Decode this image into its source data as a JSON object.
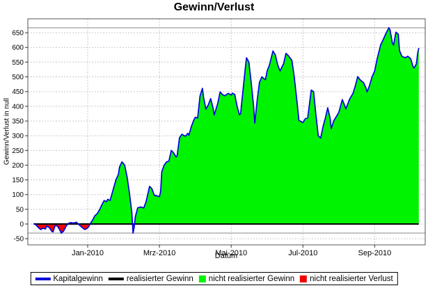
{
  "title": "Gewinn/Verlust",
  "colors": {
    "line_blue": "#0000dd",
    "realized_black": "#000000",
    "gain_green": "#00f300",
    "loss_red": "#f20000",
    "marker_gray": "#a8a8a8",
    "grid_gray": "#c8c8c8",
    "border_gray": "#555555"
  },
  "chart_data": {
    "type": "area",
    "title": "Gewinn/Verlust",
    "xlabel": "Datum",
    "ylabel": "Gewinn/Verlust in null",
    "ylim": [
      -71,
      697
    ],
    "grid": true,
    "legend_position": "bottom",
    "y_ticks": [
      650,
      600,
      550,
      500,
      450,
      400,
      350,
      300,
      250,
      200,
      150,
      100,
      50,
      0,
      -50
    ],
    "x_ticks": [
      {
        "label": "Jan-2010",
        "month": 0
      },
      {
        "label": "Mrz-2010",
        "month": 2
      },
      {
        "label": "Mai-2010",
        "month": 4
      },
      {
        "label": "Jul-2010",
        "month": 6
      },
      {
        "label": "Sep-2010",
        "month": 8
      }
    ],
    "marker_lines": "solid gray lines at series maximum and minimum",
    "series": [
      {
        "name": "Kapitalgewinn",
        "type": "line",
        "color": "#0000dd",
        "points": [
          [
            "2009-11-16",
            2
          ],
          [
            "2009-11-18",
            -3
          ],
          [
            "2009-11-20",
            -12
          ],
          [
            "2009-11-22",
            -19
          ],
          [
            "2009-11-24",
            -14
          ],
          [
            "2009-11-26",
            -17
          ],
          [
            "2009-11-27",
            -7
          ],
          [
            "2009-11-29",
            -11
          ],
          [
            "2009-12-01",
            -25
          ],
          [
            "2009-12-02",
            -27
          ],
          [
            "2009-12-04",
            -4
          ],
          [
            "2009-12-06",
            -8
          ],
          [
            "2009-12-08",
            -22
          ],
          [
            "2009-12-09",
            -31
          ],
          [
            "2009-12-11",
            -24
          ],
          [
            "2009-12-13",
            -8
          ],
          [
            "2009-12-15",
            2
          ],
          [
            "2009-12-17",
            5
          ],
          [
            "2009-12-19",
            3
          ],
          [
            "2009-12-22",
            6
          ],
          [
            "2009-12-23",
            1
          ],
          [
            "2009-12-25",
            -6
          ],
          [
            "2009-12-27",
            -13
          ],
          [
            "2009-12-29",
            -19
          ],
          [
            "2009-12-31",
            -15
          ],
          [
            "2010-01-02",
            -8
          ],
          [
            "2010-01-03",
            0
          ],
          [
            "2010-01-05",
            12
          ],
          [
            "2010-01-07",
            28
          ],
          [
            "2010-01-09",
            35
          ],
          [
            "2010-01-11",
            48
          ],
          [
            "2010-01-13",
            65
          ],
          [
            "2010-01-15",
            80
          ],
          [
            "2010-01-17",
            76
          ],
          [
            "2010-01-18",
            84
          ],
          [
            "2010-01-20",
            80
          ],
          [
            "2010-01-23",
            123
          ],
          [
            "2010-01-25",
            151
          ],
          [
            "2010-01-27",
            168
          ],
          [
            "2010-01-28",
            194
          ],
          [
            "2010-01-30",
            211
          ],
          [
            "2010-02-01",
            205
          ],
          [
            "2010-02-02",
            199
          ],
          [
            "2010-02-04",
            160
          ],
          [
            "2010-02-06",
            105
          ],
          [
            "2010-02-08",
            40
          ],
          [
            "2010-02-09",
            -31
          ],
          [
            "2010-02-10",
            -12
          ],
          [
            "2010-02-11",
            25
          ],
          [
            "2010-02-13",
            55
          ],
          [
            "2010-02-16",
            58
          ],
          [
            "2010-02-18",
            54
          ],
          [
            "2010-02-20",
            75
          ],
          [
            "2010-02-22",
            110
          ],
          [
            "2010-02-23",
            128
          ],
          [
            "2010-02-25",
            120
          ],
          [
            "2010-02-27",
            98
          ],
          [
            "2010-03-01",
            93
          ],
          [
            "2010-03-02",
            110
          ],
          [
            "2010-03-03",
            178
          ],
          [
            "2010-03-05",
            200
          ],
          [
            "2010-03-07",
            211
          ],
          [
            "2010-03-09",
            214
          ],
          [
            "2010-03-11",
            250
          ],
          [
            "2010-03-13",
            242
          ],
          [
            "2010-03-15",
            228
          ],
          [
            "2010-03-16",
            232
          ],
          [
            "2010-03-18",
            293
          ],
          [
            "2010-03-20",
            305
          ],
          [
            "2010-03-23",
            298
          ],
          [
            "2010-03-25",
            308
          ],
          [
            "2010-03-26",
            302
          ],
          [
            "2010-03-28",
            331
          ],
          [
            "2010-03-30",
            352
          ],
          [
            "2010-04-01",
            363
          ],
          [
            "2010-04-03",
            360
          ],
          [
            "2010-04-05",
            435
          ],
          [
            "2010-04-07",
            461
          ],
          [
            "2010-04-08",
            430
          ],
          [
            "2010-04-10",
            390
          ],
          [
            "2010-04-12",
            405
          ],
          [
            "2010-04-14",
            426
          ],
          [
            "2010-04-16",
            395
          ],
          [
            "2010-04-17",
            371
          ],
          [
            "2010-04-20",
            410
          ],
          [
            "2010-04-22",
            449
          ],
          [
            "2010-04-24",
            440
          ],
          [
            "2010-04-26",
            436
          ],
          [
            "2010-04-29",
            444
          ],
          [
            "2010-05-01",
            438
          ],
          [
            "2010-05-02",
            445
          ],
          [
            "2010-05-04",
            440
          ],
          [
            "2010-05-06",
            400
          ],
          [
            "2010-05-08",
            371
          ],
          [
            "2010-05-09",
            376
          ],
          [
            "2010-05-11",
            455
          ],
          [
            "2010-05-13",
            530
          ],
          [
            "2010-05-14",
            565
          ],
          [
            "2010-05-16",
            550
          ],
          [
            "2010-05-18",
            480
          ],
          [
            "2010-05-20",
            400
          ],
          [
            "2010-05-21",
            343
          ],
          [
            "2010-05-23",
            420
          ],
          [
            "2010-05-25",
            482
          ],
          [
            "2010-05-27",
            500
          ],
          [
            "2010-05-30",
            490
          ],
          [
            "2010-06-01",
            520
          ],
          [
            "2010-06-03",
            540
          ],
          [
            "2010-06-06",
            588
          ],
          [
            "2010-06-08",
            575
          ],
          [
            "2010-06-10",
            541
          ],
          [
            "2010-06-12",
            520
          ],
          [
            "2010-06-15",
            545
          ],
          [
            "2010-06-17",
            580
          ],
          [
            "2010-06-19",
            572
          ],
          [
            "2010-06-22",
            556
          ],
          [
            "2010-06-24",
            500
          ],
          [
            "2010-06-26",
            430
          ],
          [
            "2010-06-28",
            352
          ],
          [
            "2010-07-01",
            345
          ],
          [
            "2010-07-03",
            358
          ],
          [
            "2010-07-05",
            360
          ],
          [
            "2010-07-08",
            455
          ],
          [
            "2010-07-10",
            450
          ],
          [
            "2010-07-12",
            370
          ],
          [
            "2010-07-14",
            300
          ],
          [
            "2010-07-16",
            292
          ],
          [
            "2010-07-18",
            330
          ],
          [
            "2010-07-20",
            360
          ],
          [
            "2010-07-22",
            395
          ],
          [
            "2010-07-24",
            360
          ],
          [
            "2010-07-25",
            324
          ],
          [
            "2010-07-27",
            350
          ],
          [
            "2010-08-01",
            379
          ],
          [
            "2010-08-04",
            423
          ],
          [
            "2010-08-07",
            391
          ],
          [
            "2010-08-10",
            423
          ],
          [
            "2010-08-13",
            444
          ],
          [
            "2010-08-15",
            470
          ],
          [
            "2010-08-17",
            501
          ],
          [
            "2010-08-19",
            490
          ],
          [
            "2010-08-22",
            480
          ],
          [
            "2010-08-24",
            462
          ],
          [
            "2010-08-25",
            449
          ],
          [
            "2010-08-27",
            470
          ],
          [
            "2010-08-29",
            498
          ],
          [
            "2010-09-01",
            520
          ],
          [
            "2010-09-03",
            560
          ],
          [
            "2010-09-06",
            608
          ],
          [
            "2010-09-08",
            625
          ],
          [
            "2010-09-10",
            643
          ],
          [
            "2010-09-13",
            667
          ],
          [
            "2010-09-14",
            660
          ],
          [
            "2010-09-16",
            615
          ],
          [
            "2010-09-17",
            608
          ],
          [
            "2010-09-19",
            652
          ],
          [
            "2010-09-21",
            645
          ],
          [
            "2010-09-22",
            590
          ],
          [
            "2010-09-24",
            570
          ],
          [
            "2010-09-27",
            565
          ],
          [
            "2010-09-29",
            570
          ],
          [
            "2010-10-01",
            562
          ],
          [
            "2010-10-03",
            536
          ],
          [
            "2010-10-04",
            530
          ],
          [
            "2010-10-06",
            545
          ],
          [
            "2010-10-07",
            580
          ],
          [
            "2010-10-08",
            598
          ]
        ]
      },
      {
        "name": "realisierter Gewinn",
        "type": "line",
        "color": "#000000",
        "value": 0
      },
      {
        "name": "nicht realisierter Gewinn",
        "type": "area",
        "color": "#00f300"
      },
      {
        "name": "nicht realisierter Verlust",
        "type": "area",
        "color": "#f20000"
      }
    ]
  }
}
